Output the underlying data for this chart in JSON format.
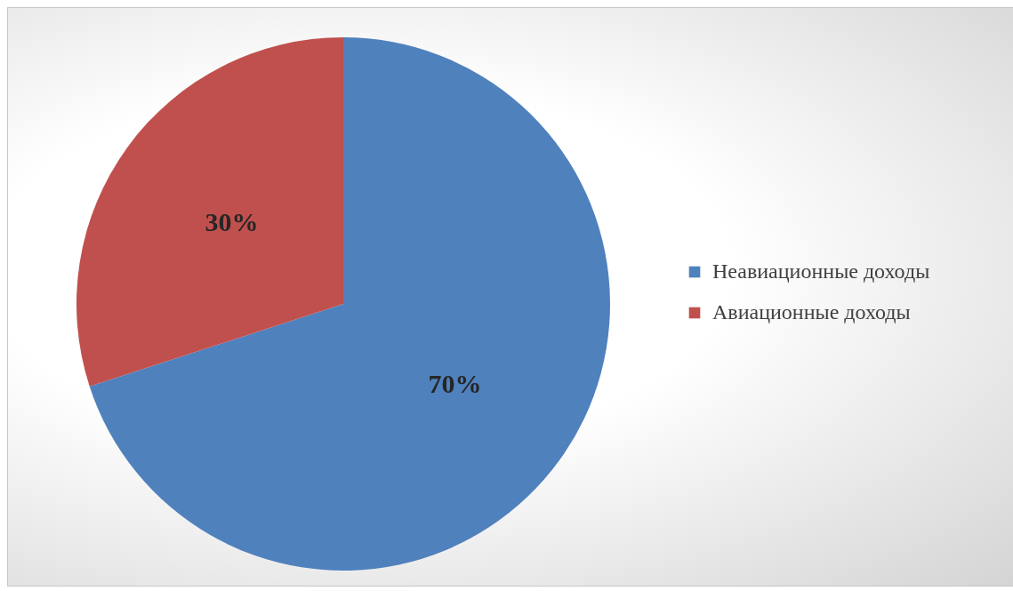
{
  "chart_data": {
    "type": "pie",
    "categories": [
      "Неавиационные доходы",
      "Авиационные доходы"
    ],
    "values": [
      70,
      30
    ],
    "colors": [
      "#4f81bd",
      "#c0504d"
    ],
    "value_labels": [
      "70%",
      "30%"
    ],
    "legend": "right"
  }
}
